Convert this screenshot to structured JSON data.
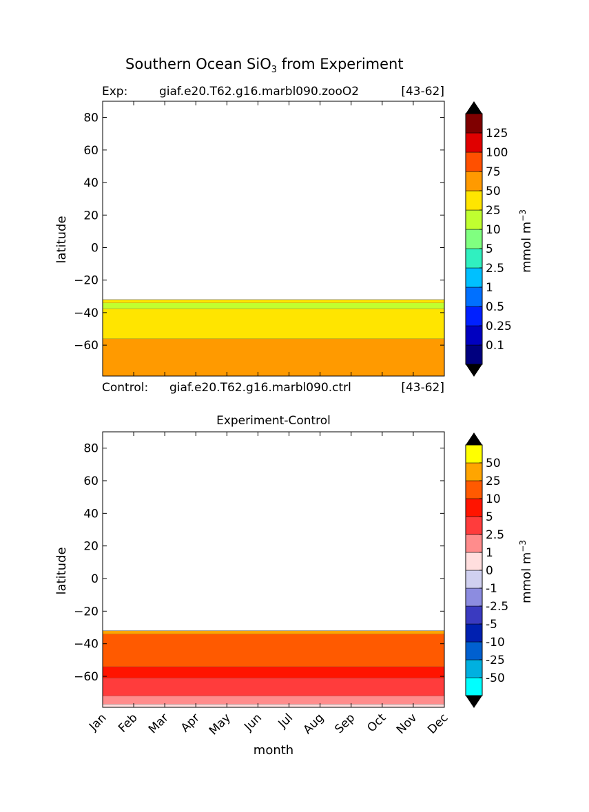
{
  "chart_data": {
    "type": "heatmap",
    "title": "Southern Ocean SiO",
    "title_sub": "3",
    "title_rest": " from Experiment",
    "exp_label": "Exp:",
    "exp_name": "giaf.e20.T62.g16.marbl090.zooO2",
    "exp_years": "[43-62]",
    "ctrl_label": "Control:",
    "ctrl_name": "giaf.e20.T62.g16.marbl090.ctrl",
    "ctrl_years": "[43-62]",
    "diff_title": "Experiment-Control",
    "xlabel": "month",
    "ylabel": "latitude",
    "months": [
      "Jan",
      "Feb",
      "Mar",
      "Apr",
      "May",
      "Jun",
      "Jul",
      "Aug",
      "Sep",
      "Oct",
      "Nov",
      "Dec"
    ],
    "yticks": [
      "80",
      "60",
      "40",
      "20",
      "0",
      "−20",
      "−40",
      "−60"
    ],
    "ylim": [
      -79,
      90
    ],
    "units": "mmol m",
    "units_sup": "−3",
    "top_colorbar": {
      "labels": [
        "125",
        "100",
        "75",
        "50",
        "25",
        "10",
        "5",
        "2.5",
        "1",
        "0.5",
        "0.25",
        "0.1"
      ],
      "colors": [
        "#00007f",
        "#0000c0",
        "#0020ff",
        "#0070ff",
        "#00c0ff",
        "#30f0c0",
        "#80ff80",
        "#c0ff30",
        "#ffe500",
        "#ff9a00",
        "#ff5000",
        "#e00000",
        "#7f0000"
      ],
      "extend_color": "#000000"
    },
    "diff_colorbar": {
      "labels": [
        "50",
        "25",
        "10",
        "5",
        "2.5",
        "1",
        "0",
        "-1",
        "-2.5",
        "-5",
        "-10",
        "-25",
        "-50"
      ],
      "colors": [
        "#00ffff",
        "#00b0e0",
        "#0060d0",
        "#0020b0",
        "#3a3ac0",
        "#8c8ce0",
        "#d0d0f0",
        "#ffdede",
        "#ff8c8c",
        "#ff3c3c",
        "#ff1400",
        "#ff5a00",
        "#ffa500",
        "#ffff00"
      ],
      "extend_color": "#000000"
    },
    "experiment_field": {
      "description_bands_lat": [
        {
          "from": -79,
          "to": -56,
          "value": 60,
          "color": "#ff9a00"
        },
        {
          "from": -56,
          "to": -37.5,
          "value": 35,
          "color": "#ffe500"
        },
        {
          "from": -37.5,
          "to": -34,
          "value": 18,
          "color": "#c0ff30"
        },
        {
          "from": -34,
          "to": -32,
          "value": 35,
          "color": "#ffe500"
        }
      ]
    },
    "difference_field": {
      "bands_lat": [
        {
          "from": -79,
          "to": -77,
          "value": 0.5,
          "color": "#ffdede"
        },
        {
          "from": -77,
          "to": -72,
          "value": 1.5,
          "color": "#ff8c8c"
        },
        {
          "from": -72,
          "to": -61,
          "value": 3.5,
          "color": "#ff3c3c"
        },
        {
          "from": -61,
          "to": -54,
          "value": 7,
          "color": "#ff1400"
        },
        {
          "from": -54,
          "to": -34,
          "value": 15,
          "color": "#ff5a00"
        },
        {
          "from": -34,
          "to": -32,
          "value": 30,
          "color": "#ffa500"
        }
      ]
    }
  }
}
